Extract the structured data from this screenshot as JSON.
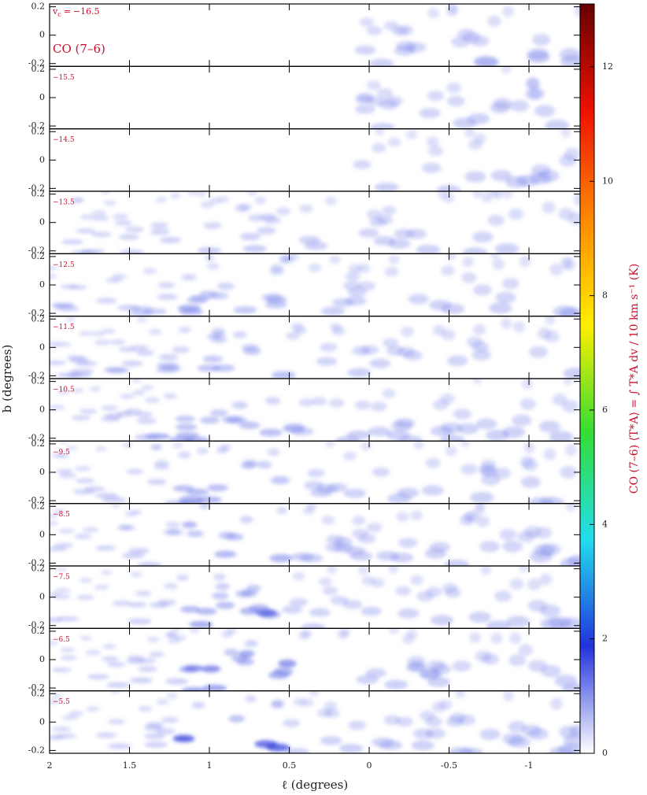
{
  "chart_data": {
    "type": "channel_map",
    "line_label": "CO (7–6)",
    "velocity_symbol": "v",
    "velocity_subscript": "c",
    "velocity_equals": "=",
    "panels": [
      "−16.5",
      "−15.5",
      "−14.5",
      "−13.5",
      "−12.5",
      "−11.5",
      "−10.5",
      "−9.5",
      "−8.5",
      "−7.5",
      "−6.5",
      "−5.5"
    ],
    "x_label": "ℓ (degrees)",
    "y_label": "b (degrees)",
    "xlim": [
      2,
      -1.32
    ],
    "xticks": [
      2,
      1.5,
      1,
      0.5,
      0,
      -0.5,
      -1
    ],
    "ylim": [
      -0.22,
      0.22
    ],
    "yticks": [
      -0.2,
      0,
      0.2
    ],
    "colorbar_label": "CO (7–6) ⟨T*A⟩ = ∫ T*A dv / 10 km s⁻¹ (K)",
    "zlim": [
      0,
      13.1
    ],
    "zticks": [
      0,
      2,
      4,
      6,
      8,
      10,
      12
    ],
    "colormap": [
      "#ffffff",
      "#2233dd",
      "#22ddee",
      "#33dd33",
      "#ffee00",
      "#ff8800",
      "#ee1100",
      "#660000"
    ]
  }
}
